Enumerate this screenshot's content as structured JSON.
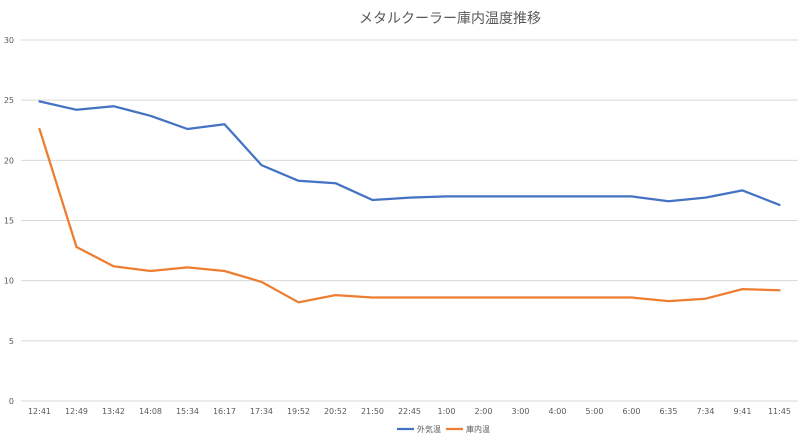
{
  "chart_data": {
    "type": "line",
    "title": "メタルクーラー庫内温度推移",
    "xlabel": "",
    "ylabel": "",
    "ylim": [
      0,
      30
    ],
    "yticks": [
      0,
      5,
      10,
      15,
      20,
      25,
      30
    ],
    "grid": true,
    "legend_position": "bottom",
    "categories": [
      "12:41",
      "12:49",
      "13:42",
      "14:08",
      "15:34",
      "16:17",
      "17:34",
      "19:52",
      "20:52",
      "21:50",
      "22:45",
      "1:00",
      "2:00",
      "3:00",
      "4:00",
      "5:00",
      "6:00",
      "6:35",
      "7:34",
      "9:41",
      "11:45"
    ],
    "series": [
      {
        "name": "外気温",
        "color": "#4472c4",
        "values": [
          24.9,
          24.2,
          24.5,
          23.7,
          22.6,
          23.0,
          19.6,
          18.3,
          18.1,
          16.7,
          16.9,
          17.0,
          17.0,
          17.0,
          17.0,
          17.0,
          17.0,
          16.6,
          16.9,
          17.5,
          16.3
        ]
      },
      {
        "name": "庫内温",
        "color": "#ed7d31",
        "values": [
          22.6,
          12.8,
          11.2,
          10.8,
          11.1,
          10.8,
          9.9,
          8.2,
          8.8,
          8.6,
          8.6,
          8.6,
          8.6,
          8.6,
          8.6,
          8.6,
          8.6,
          8.3,
          8.5,
          9.3,
          9.2
        ]
      }
    ]
  }
}
